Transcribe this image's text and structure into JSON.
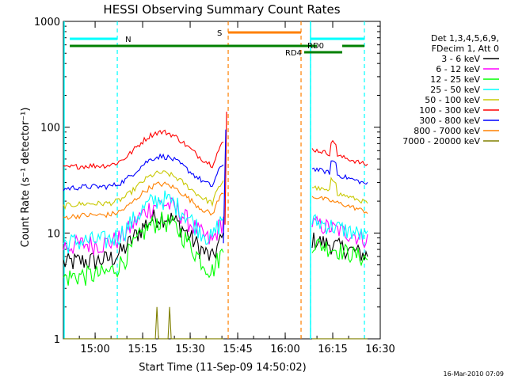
{
  "chart_data": {
    "type": "line",
    "title": "HESSI Observing Summary Count Rates",
    "xlabel": "Start Time (11-Sep-09 14:50:02)",
    "ylabel": "Count Rate (s⁻¹ detector⁻¹)",
    "xlim_min": [
      14.833,
      16.5
    ],
    "ylim": [
      1,
      1000
    ],
    "yscale": "log",
    "x_ticks": [
      "15:00",
      "15:15",
      "15:30",
      "15:45",
      "16:00",
      "16:15",
      "16:30"
    ],
    "y_ticks": [
      "1",
      "10",
      "100",
      "1000"
    ],
    "legend_header": [
      "Det 1,3,4,5,6,9,",
      "FDecim 1, Att 0"
    ],
    "legend_placement": "right",
    "series": [
      {
        "name": "3 - 6 keV",
        "color": "#000000",
        "base": 5.2,
        "peak": 14.5,
        "post": 7.0
      },
      {
        "name": "6 - 12 keV",
        "color": "#ff00ff",
        "base": 7.5,
        "peak": 19,
        "post": 10
      },
      {
        "name": "12 - 25 keV",
        "color": "#00ff00",
        "base": 3.8,
        "peak": 13,
        "post": 6.5
      },
      {
        "name": "25 - 50 keV",
        "color": "#00ffff",
        "base": 8.0,
        "peak": 21,
        "post": 10.5
      },
      {
        "name": "50 - 100 keV",
        "color": "#c8c800",
        "base": 18,
        "peak": 37,
        "post": 22
      },
      {
        "name": "100 - 300 keV",
        "color": "#ff0000",
        "base": 41,
        "peak": 90,
        "post": 50
      },
      {
        "name": "300 - 800 keV",
        "color": "#0000ff",
        "base": 26,
        "peak": 53,
        "post": 33
      },
      {
        "name": "800 - 7000 keV",
        "color": "#ff8000",
        "base": 14,
        "peak": 29,
        "post": 18
      },
      {
        "name": "7000 - 20000 keV",
        "color": "#808000",
        "base": 1.5,
        "peak": 2.0,
        "post": 1.5
      }
    ],
    "flag_labels": {
      "night": "N",
      "saa": "S",
      "decim0": "RD0",
      "decim4": "RD4"
    },
    "flag_bars": [
      {
        "flag": "N",
        "color": "#00ffff",
        "start": "14:52",
        "end": "15:07"
      },
      {
        "flag": "N",
        "color": "#00ffff",
        "start": "16:08",
        "end": "16:25"
      },
      {
        "flag": "S",
        "color": "#ff8000",
        "start": "15:42",
        "end": "16:05"
      },
      {
        "flag": "RD0",
        "color": "#008000",
        "start": "14:52",
        "end": "16:10"
      },
      {
        "flag": "RD0",
        "color": "#008000",
        "start": "16:18",
        "end": "16:25"
      },
      {
        "flag": "RD4",
        "color": "#008000",
        "start": "16:06",
        "end": "16:18"
      }
    ],
    "event_lines": [
      {
        "color": "#00ffff",
        "time": "15:07"
      },
      {
        "color": "#00ffff",
        "time": "16:08"
      },
      {
        "color": "#00ffff",
        "time": "16:25"
      },
      {
        "color": "#ff8000",
        "time": "15:42"
      },
      {
        "color": "#ff8000",
        "time": "16:05"
      }
    ],
    "footer": "16-Mar-2010 07:09"
  }
}
